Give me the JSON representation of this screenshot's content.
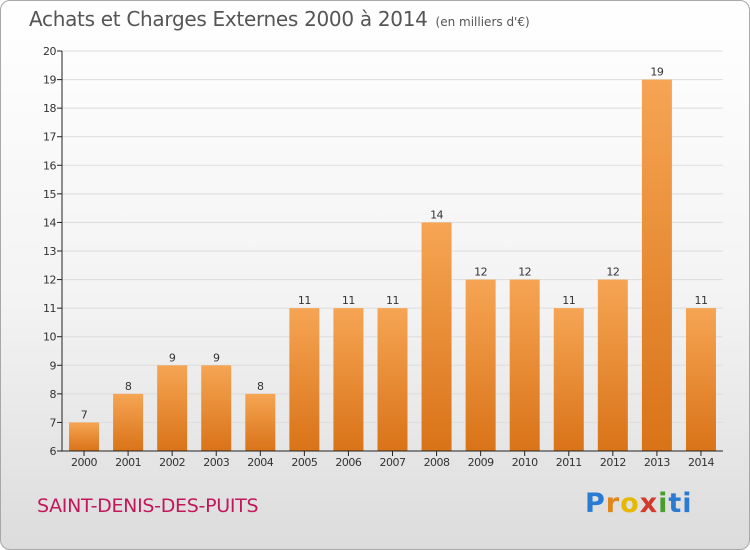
{
  "title": "Achats et Charges Externes 2000 à 2014",
  "subtitle": "(en milliers d'€)",
  "city": "SAINT-DENIS-DES-PUITS",
  "logo": {
    "text": "Proxiti",
    "letters": [
      "P",
      "r",
      "o",
      "x",
      "i",
      "ti"
    ]
  },
  "colors": {
    "bar_light": "#f6a554",
    "bar_dark": "#d97318",
    "axis": "#222222",
    "grid": "#dddddd",
    "city": "#c2185b"
  },
  "chart_data": {
    "type": "bar",
    "categories": [
      "2000",
      "2001",
      "2002",
      "2003",
      "2004",
      "2005",
      "2006",
      "2007",
      "2008",
      "2009",
      "2010",
      "2011",
      "2012",
      "2013",
      "2014"
    ],
    "values": [
      7,
      8,
      9,
      9,
      8,
      11,
      11,
      11,
      14,
      12,
      12,
      11,
      12,
      19,
      11
    ],
    "title": "Achats et Charges Externes 2000 à 2014",
    "ylabel": "",
    "xlabel": "",
    "ylim": [
      6,
      20
    ],
    "yticks": [
      6,
      7,
      8,
      9,
      10,
      11,
      12,
      13,
      14,
      15,
      16,
      17,
      18,
      19,
      20
    ],
    "grid": true,
    "data_labels": true
  }
}
